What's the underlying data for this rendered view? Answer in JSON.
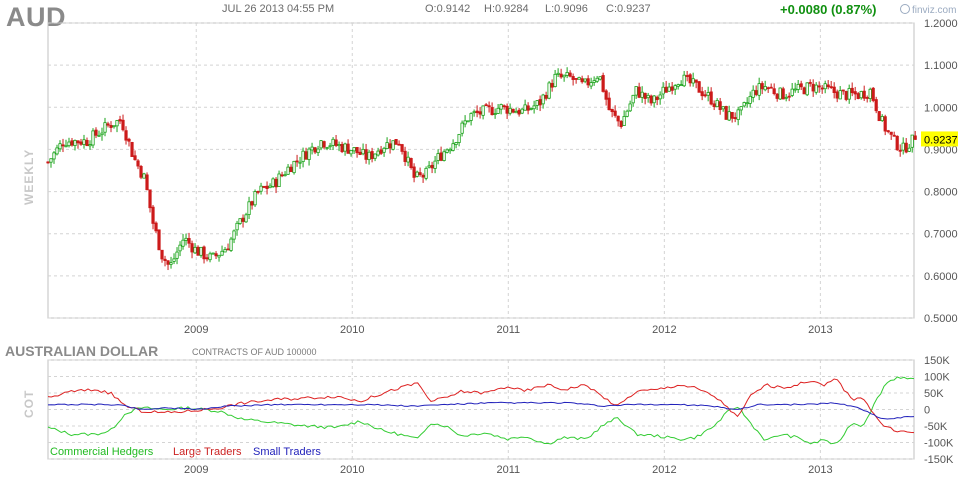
{
  "header": {
    "symbol": "AUD",
    "datetime": "JUL 26 2013 04:55 PM",
    "open": "O:0.9142",
    "high": "H:0.9284",
    "low": "L:0.9096",
    "close": "C:0.9237",
    "change": "+0.0080 (0.87%)",
    "brand": "finviz.com"
  },
  "panel_labels": {
    "price_side": "WEEKLY",
    "cot_side": "COT"
  },
  "cot_header": {
    "title": "AUSTRALIAN DOLLAR",
    "contracts": "CONTRACTS OF AUD 100000"
  },
  "colors": {
    "up": "#1aa31a",
    "down": "#cc1a1a",
    "commercial": "#33cc33",
    "large": "#dd2222",
    "small": "#2222bb",
    "last_price_bg": "#ffff00",
    "grid": "#d4d4d4"
  },
  "chart_data": [
    {
      "type": "candlestick",
      "title": "AUD",
      "ylabel": "",
      "ylim": [
        0.5,
        1.2
      ],
      "y_ticks": [
        "1.2000",
        "1.1000",
        "1.0000",
        "0.9000",
        "0.8000",
        "0.7000",
        "0.6000",
        "0.5000"
      ],
      "y_tick_values": [
        1.2,
        1.1,
        1.0,
        0.9,
        0.8,
        0.7,
        0.6,
        0.5
      ],
      "x_ticks": [
        "2009",
        "2010",
        "2011",
        "2012",
        "2013"
      ],
      "x_tick_years": [
        2009,
        2010,
        2011,
        2012,
        2013
      ],
      "x_range_years": [
        2008.05,
        2013.6
      ],
      "last_price_label": "0.9237",
      "last_price": 0.9237,
      "weekly_close_keypoints": [
        [
          2008.05,
          0.87
        ],
        [
          2008.15,
          0.92
        ],
        [
          2008.3,
          0.92
        ],
        [
          2008.45,
          0.96
        ],
        [
          2008.52,
          0.97
        ],
        [
          2008.6,
          0.88
        ],
        [
          2008.67,
          0.83
        ],
        [
          2008.72,
          0.73
        ],
        [
          2008.78,
          0.65
        ],
        [
          2008.83,
          0.62
        ],
        [
          2008.92,
          0.69
        ],
        [
          2009.0,
          0.66
        ],
        [
          2009.1,
          0.64
        ],
        [
          2009.2,
          0.67
        ],
        [
          2009.3,
          0.74
        ],
        [
          2009.4,
          0.8
        ],
        [
          2009.5,
          0.82
        ],
        [
          2009.6,
          0.86
        ],
        [
          2009.7,
          0.89
        ],
        [
          2009.8,
          0.92
        ],
        [
          2009.9,
          0.91
        ],
        [
          2010.0,
          0.9
        ],
        [
          2010.1,
          0.88
        ],
        [
          2010.2,
          0.91
        ],
        [
          2010.3,
          0.92
        ],
        [
          2010.4,
          0.83
        ],
        [
          2010.47,
          0.84
        ],
        [
          2010.55,
          0.88
        ],
        [
          2010.65,
          0.92
        ],
        [
          2010.75,
          0.98
        ],
        [
          2010.85,
          0.99
        ],
        [
          2010.95,
          1.0
        ],
        [
          2011.1,
          0.99
        ],
        [
          2011.2,
          1.01
        ],
        [
          2011.3,
          1.07
        ],
        [
          2011.4,
          1.07
        ],
        [
          2011.48,
          1.05
        ],
        [
          2011.58,
          1.08
        ],
        [
          2011.65,
          0.99
        ],
        [
          2011.72,
          0.96
        ],
        [
          2011.82,
          1.04
        ],
        [
          2011.92,
          1.01
        ],
        [
          2012.0,
          1.04
        ],
        [
          2012.1,
          1.07
        ],
        [
          2012.2,
          1.05
        ],
        [
          2012.3,
          1.02
        ],
        [
          2012.4,
          0.98
        ],
        [
          2012.48,
          0.98
        ],
        [
          2012.58,
          1.04
        ],
        [
          2012.65,
          1.05
        ],
        [
          2012.75,
          1.03
        ],
        [
          2012.85,
          1.04
        ],
        [
          2012.95,
          1.05
        ],
        [
          2013.05,
          1.04
        ],
        [
          2013.15,
          1.03
        ],
        [
          2013.25,
          1.03
        ],
        [
          2013.32,
          1.04
        ],
        [
          2013.4,
          0.96
        ],
        [
          2013.47,
          0.92
        ],
        [
          2013.53,
          0.9
        ],
        [
          2013.58,
          0.92
        ]
      ]
    },
    {
      "type": "line",
      "title": "AUSTRALIAN DOLLAR",
      "ylabel": "",
      "ylim": [
        -150000,
        150000
      ],
      "y_ticks": [
        "150K",
        "100K",
        "50K",
        "0",
        "-50K",
        "-100K",
        "-150K"
      ],
      "y_tick_values": [
        150000,
        100000,
        50000,
        0,
        -50000,
        -100000,
        -150000
      ],
      "x_ticks": [
        "2009",
        "2010",
        "2011",
        "2012",
        "2013"
      ],
      "x_tick_years": [
        2009,
        2010,
        2011,
        2012,
        2013
      ],
      "x_range_years": [
        2008.05,
        2013.6
      ],
      "series": [
        {
          "name": "Commercial Hedgers",
          "color": "#33cc33",
          "points": [
            [
              2008.05,
              -55000
            ],
            [
              2008.2,
              -75000
            ],
            [
              2008.35,
              -75000
            ],
            [
              2008.45,
              -65000
            ],
            [
              2008.55,
              -10000
            ],
            [
              2008.65,
              5000
            ],
            [
              2008.8,
              0
            ],
            [
              2008.95,
              5000
            ],
            [
              2009.15,
              -5000
            ],
            [
              2009.3,
              -30000
            ],
            [
              2009.5,
              -40000
            ],
            [
              2009.7,
              -50000
            ],
            [
              2009.9,
              -55000
            ],
            [
              2010.05,
              -35000
            ],
            [
              2010.2,
              -65000
            ],
            [
              2010.3,
              -75000
            ],
            [
              2010.42,
              -90000
            ],
            [
              2010.5,
              -40000
            ],
            [
              2010.6,
              -50000
            ],
            [
              2010.7,
              -80000
            ],
            [
              2010.85,
              -70000
            ],
            [
              2011.0,
              -90000
            ],
            [
              2011.1,
              -80000
            ],
            [
              2011.25,
              -105000
            ],
            [
              2011.35,
              -85000
            ],
            [
              2011.5,
              -90000
            ],
            [
              2011.6,
              -50000
            ],
            [
              2011.7,
              -25000
            ],
            [
              2011.82,
              -75000
            ],
            [
              2011.95,
              -80000
            ],
            [
              2012.1,
              -90000
            ],
            [
              2012.2,
              -85000
            ],
            [
              2012.32,
              -50000
            ],
            [
              2012.4,
              -10000
            ],
            [
              2012.47,
              10000
            ],
            [
              2012.55,
              -40000
            ],
            [
              2012.65,
              -95000
            ],
            [
              2012.75,
              -75000
            ],
            [
              2012.85,
              -85000
            ],
            [
              2012.95,
              -105000
            ],
            [
              2013.02,
              -90000
            ],
            [
              2013.1,
              -110000
            ],
            [
              2013.2,
              -40000
            ],
            [
              2013.27,
              -50000
            ],
            [
              2013.35,
              20000
            ],
            [
              2013.42,
              80000
            ],
            [
              2013.5,
              100000
            ],
            [
              2013.58,
              90000
            ]
          ]
        },
        {
          "name": "Large Traders",
          "color": "#dd2222",
          "points": [
            [
              2008.05,
              35000
            ],
            [
              2008.2,
              55000
            ],
            [
              2008.35,
              60000
            ],
            [
              2008.45,
              50000
            ],
            [
              2008.55,
              10000
            ],
            [
              2008.65,
              -5000
            ],
            [
              2008.8,
              -10000
            ],
            [
              2008.95,
              -5000
            ],
            [
              2009.15,
              5000
            ],
            [
              2009.3,
              20000
            ],
            [
              2009.5,
              30000
            ],
            [
              2009.7,
              35000
            ],
            [
              2009.9,
              40000
            ],
            [
              2010.05,
              25000
            ],
            [
              2010.2,
              50000
            ],
            [
              2010.3,
              65000
            ],
            [
              2010.42,
              80000
            ],
            [
              2010.5,
              25000
            ],
            [
              2010.6,
              35000
            ],
            [
              2010.7,
              55000
            ],
            [
              2010.85,
              50000
            ],
            [
              2011.0,
              70000
            ],
            [
              2011.1,
              55000
            ],
            [
              2011.25,
              75000
            ],
            [
              2011.35,
              60000
            ],
            [
              2011.5,
              75000
            ],
            [
              2011.6,
              40000
            ],
            [
              2011.7,
              10000
            ],
            [
              2011.82,
              55000
            ],
            [
              2011.95,
              60000
            ],
            [
              2012.1,
              75000
            ],
            [
              2012.2,
              65000
            ],
            [
              2012.32,
              40000
            ],
            [
              2012.4,
              10000
            ],
            [
              2012.47,
              -25000
            ],
            [
              2012.55,
              40000
            ],
            [
              2012.65,
              75000
            ],
            [
              2012.75,
              65000
            ],
            [
              2012.85,
              75000
            ],
            [
              2012.95,
              90000
            ],
            [
              2013.02,
              70000
            ],
            [
              2013.1,
              95000
            ],
            [
              2013.2,
              30000
            ],
            [
              2013.27,
              40000
            ],
            [
              2013.35,
              -20000
            ],
            [
              2013.42,
              -55000
            ],
            [
              2013.5,
              -65000
            ],
            [
              2013.58,
              -70000
            ]
          ]
        },
        {
          "name": "Small Traders",
          "color": "#2222bb",
          "points": [
            [
              2008.05,
              15000
            ],
            [
              2008.3,
              15000
            ],
            [
              2008.5,
              15000
            ],
            [
              2008.65,
              0
            ],
            [
              2008.8,
              5000
            ],
            [
              2009.0,
              0
            ],
            [
              2009.2,
              10000
            ],
            [
              2009.5,
              15000
            ],
            [
              2009.8,
              15000
            ],
            [
              2010.1,
              15000
            ],
            [
              2010.4,
              10000
            ],
            [
              2010.6,
              15000
            ],
            [
              2010.9,
              20000
            ],
            [
              2011.1,
              20000
            ],
            [
              2011.4,
              20000
            ],
            [
              2011.6,
              10000
            ],
            [
              2011.8,
              15000
            ],
            [
              2012.1,
              15000
            ],
            [
              2012.3,
              10000
            ],
            [
              2012.47,
              0
            ],
            [
              2012.6,
              15000
            ],
            [
              2012.9,
              15000
            ],
            [
              2013.1,
              20000
            ],
            [
              2013.25,
              5000
            ],
            [
              2013.4,
              -30000
            ],
            [
              2013.5,
              -25000
            ],
            [
              2013.58,
              -20000
            ]
          ]
        }
      ]
    }
  ]
}
